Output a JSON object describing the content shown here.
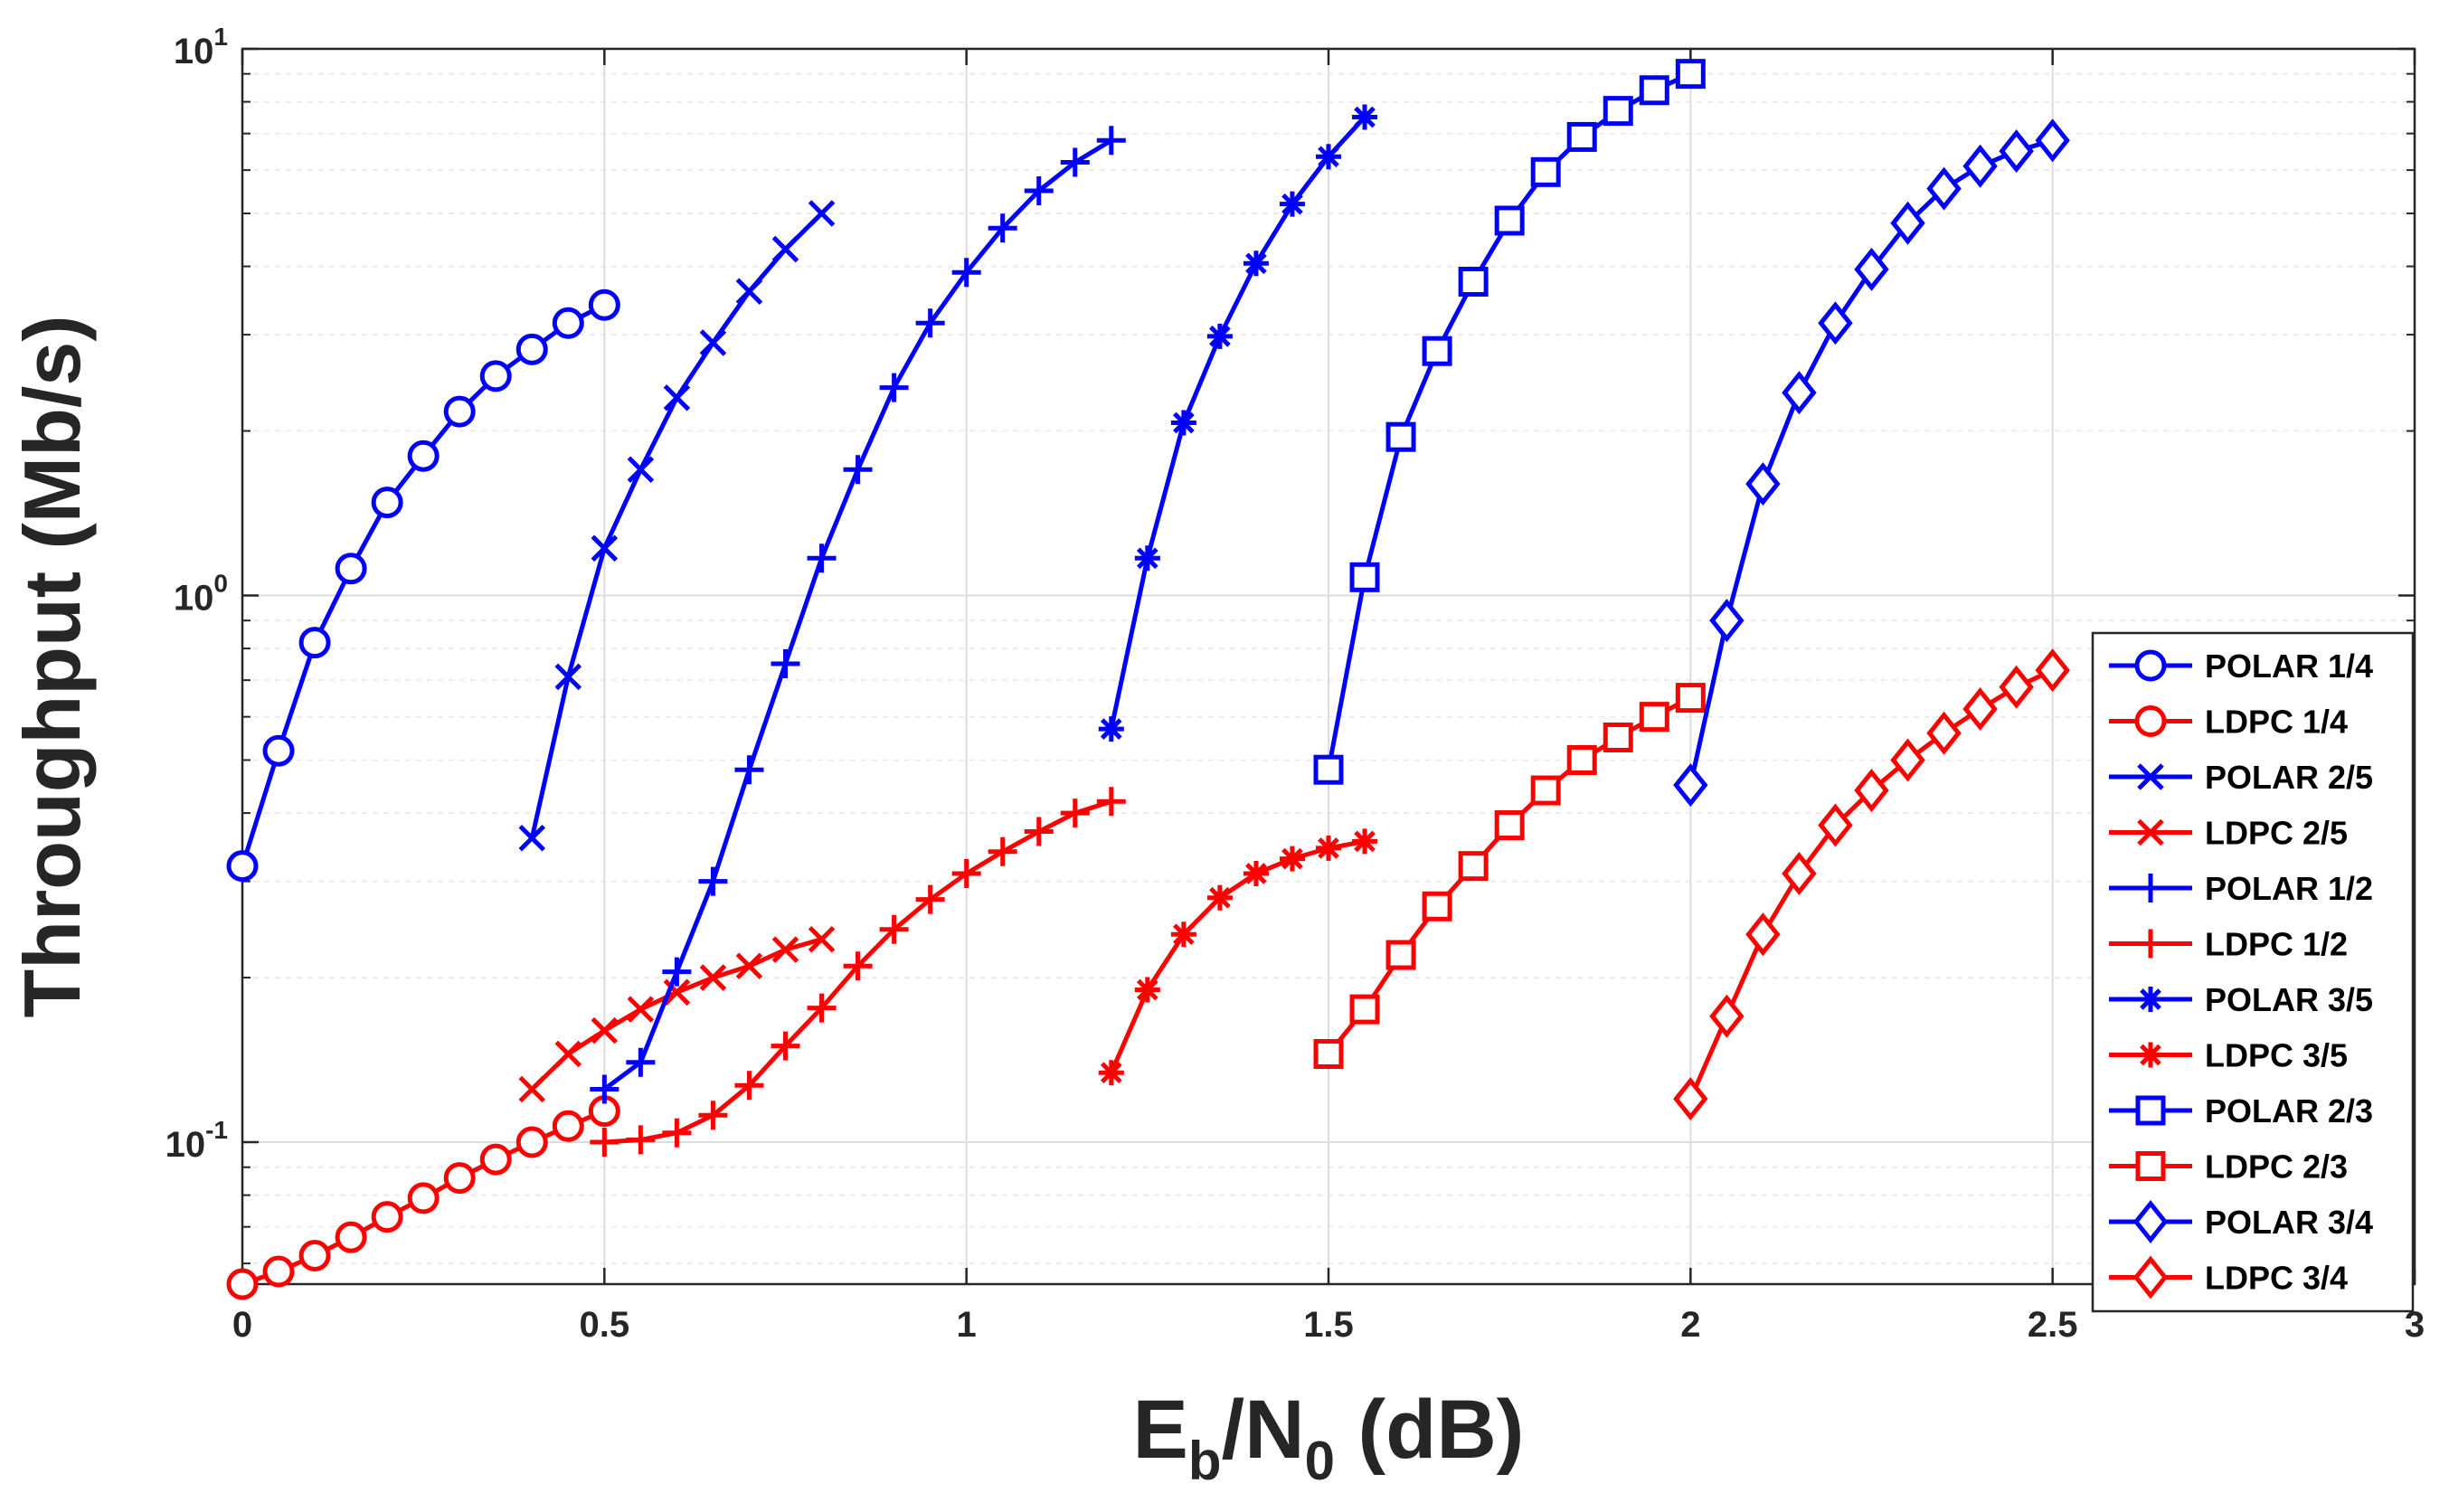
{
  "chart_data": {
    "type": "line",
    "title": "",
    "xlabel": {
      "main": "E",
      "sub1": "b",
      "mid": "/N",
      "sub2": "0",
      "tail": " (dB)"
    },
    "ylabel": "Throughput (Mb/s)",
    "xlim": [
      0,
      3
    ],
    "ylim": [
      0.055,
      10
    ],
    "yscale": "log",
    "grid": true,
    "legend_position": "bottom-right",
    "x_ticks": [
      0,
      0.5,
      1,
      1.5,
      2,
      2.5,
      3
    ],
    "x_tick_labels": [
      "0",
      "0.5",
      "1",
      "1.5",
      "2",
      "2.5",
      "3"
    ],
    "y_ticks": [
      {
        "value": 0.1,
        "base": "10",
        "exp": "-1"
      },
      {
        "value": 1,
        "base": "10",
        "exp": "0"
      },
      {
        "value": 10,
        "base": "10",
        "exp": "1"
      }
    ],
    "series": [
      {
        "name": "POLAR 1/4",
        "color": "#0000ff",
        "marker": "circle",
        "x": [
          0,
          0.05,
          0.1,
          0.15,
          0.2,
          0.25,
          0.3,
          0.35,
          0.4,
          0.45,
          0.5
        ],
        "y": [
          0.32,
          0.52,
          0.82,
          1.12,
          1.48,
          1.8,
          2.17,
          2.52,
          2.82,
          3.15,
          3.4
        ]
      },
      {
        "name": "LDPC 1/4",
        "color": "#ff0000",
        "marker": "circle",
        "x": [
          0,
          0.05,
          0.1,
          0.15,
          0.2,
          0.25,
          0.3,
          0.35,
          0.4,
          0.45,
          0.5
        ],
        "y": [
          0.055,
          0.058,
          0.062,
          0.067,
          0.073,
          0.079,
          0.086,
          0.093,
          0.1,
          0.107,
          0.114
        ]
      },
      {
        "name": "POLAR 2/5",
        "color": "#0000ff",
        "marker": "x",
        "x": [
          0.4,
          0.45,
          0.5,
          0.55,
          0.6,
          0.65,
          0.7,
          0.75,
          0.8
        ],
        "y": [
          0.36,
          0.71,
          1.22,
          1.7,
          2.3,
          2.9,
          3.6,
          4.3,
          5.0
        ]
      },
      {
        "name": "LDPC 2/5",
        "color": "#ff0000",
        "marker": "x",
        "x": [
          0.4,
          0.45,
          0.5,
          0.55,
          0.6,
          0.65,
          0.7,
          0.75,
          0.8
        ],
        "y": [
          0.125,
          0.145,
          0.16,
          0.175,
          0.188,
          0.2,
          0.21,
          0.225,
          0.235
        ]
      },
      {
        "name": "POLAR 1/2",
        "color": "#0000ff",
        "marker": "plus",
        "x": [
          0.5,
          0.55,
          0.6,
          0.65,
          0.7,
          0.75,
          0.8,
          0.85,
          0.9,
          0.95,
          1.0,
          1.05,
          1.1,
          1.15,
          1.2
        ],
        "y": [
          0.125,
          0.14,
          0.205,
          0.3,
          0.48,
          0.75,
          1.17,
          1.7,
          2.4,
          3.15,
          3.9,
          4.7,
          5.5,
          6.2,
          6.8
        ]
      },
      {
        "name": "LDPC 1/2",
        "color": "#ff0000",
        "marker": "plus",
        "x": [
          0.5,
          0.55,
          0.6,
          0.65,
          0.7,
          0.75,
          0.8,
          0.85,
          0.9,
          0.95,
          1.0,
          1.05,
          1.1,
          1.15,
          1.2
        ],
        "y": [
          0.1,
          0.101,
          0.104,
          0.112,
          0.127,
          0.15,
          0.176,
          0.21,
          0.245,
          0.278,
          0.31,
          0.34,
          0.37,
          0.4,
          0.42
        ]
      },
      {
        "name": "POLAR 3/5",
        "color": "#0000ff",
        "marker": "asterisk",
        "x": [
          1.2,
          1.25,
          1.3,
          1.35,
          1.4,
          1.45,
          1.5,
          1.55
        ],
        "y": [
          0.57,
          1.17,
          2.07,
          2.98,
          4.05,
          5.2,
          6.35,
          7.5
        ]
      },
      {
        "name": "LDPC 3/5",
        "color": "#ff0000",
        "marker": "asterisk",
        "x": [
          1.2,
          1.25,
          1.3,
          1.35,
          1.4,
          1.45,
          1.5,
          1.55
        ],
        "y": [
          0.134,
          0.19,
          0.24,
          0.28,
          0.31,
          0.33,
          0.345,
          0.355
        ]
      },
      {
        "name": "POLAR 2/3",
        "color": "#0000ff",
        "marker": "square",
        "x": [
          1.5,
          1.55,
          1.6,
          1.65,
          1.7,
          1.75,
          1.8,
          1.85,
          1.9,
          1.95,
          2.0
        ],
        "y": [
          0.48,
          1.08,
          1.95,
          2.8,
          3.75,
          4.85,
          5.95,
          6.9,
          7.7,
          8.4,
          9.0
        ]
      },
      {
        "name": "LDPC 2/3",
        "color": "#ff0000",
        "marker": "square",
        "x": [
          1.5,
          1.55,
          1.6,
          1.65,
          1.7,
          1.75,
          1.8,
          1.85,
          1.9,
          1.95,
          2.0
        ],
        "y": [
          0.145,
          0.175,
          0.22,
          0.27,
          0.32,
          0.38,
          0.44,
          0.5,
          0.55,
          0.6,
          0.65
        ]
      },
      {
        "name": "POLAR 3/4",
        "color": "#0000ff",
        "marker": "diamond",
        "x": [
          2.0,
          2.05,
          2.1,
          2.15,
          2.2,
          2.25,
          2.3,
          2.35,
          2.4,
          2.45,
          2.5
        ],
        "y": [
          0.45,
          0.9,
          1.6,
          2.35,
          3.15,
          3.95,
          4.8,
          5.55,
          6.1,
          6.5,
          6.8
        ]
      },
      {
        "name": "LDPC 3/4",
        "color": "#ff0000",
        "marker": "diamond",
        "x": [
          2.0,
          2.05,
          2.1,
          2.15,
          2.2,
          2.25,
          2.3,
          2.35,
          2.4,
          2.45,
          2.5
        ],
        "y": [
          0.12,
          0.17,
          0.24,
          0.31,
          0.38,
          0.44,
          0.5,
          0.56,
          0.62,
          0.68,
          0.73
        ]
      }
    ]
  }
}
